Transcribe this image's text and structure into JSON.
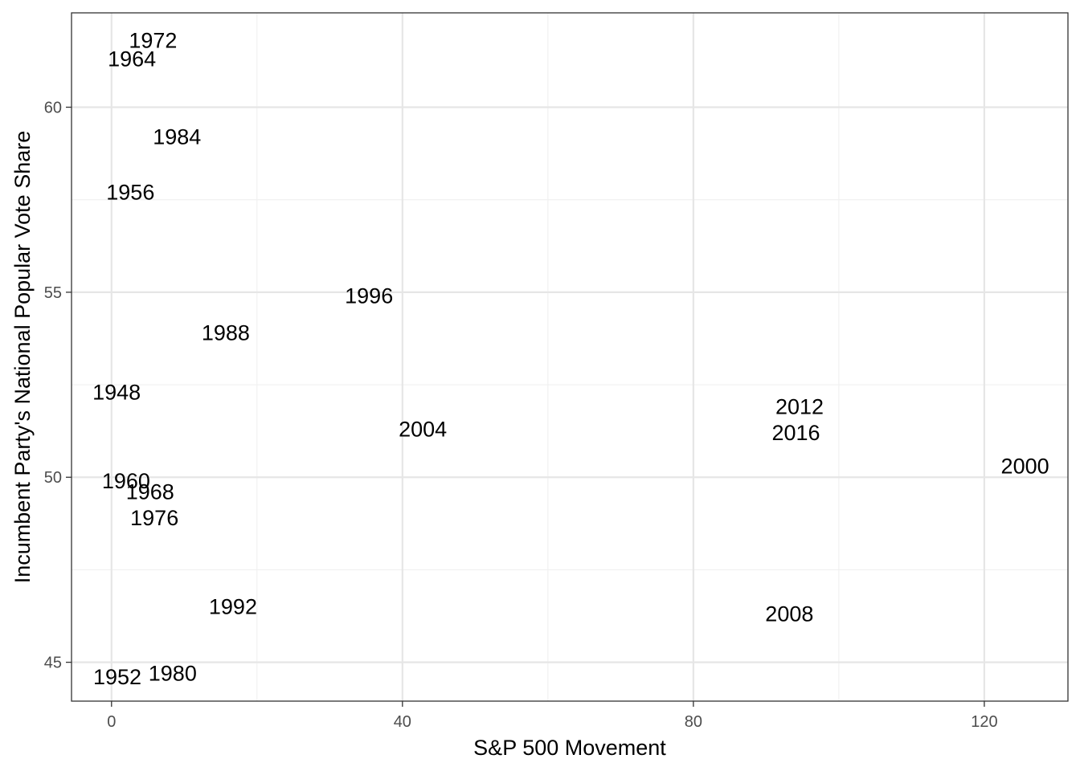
{
  "chart_data": {
    "type": "scatter",
    "title": "",
    "xlabel": "S&P 500 Movement",
    "ylabel": "Incumbent Party's National Popular Vote Share",
    "xlim": [
      -5.5,
      131.5
    ],
    "ylim": [
      43.95,
      62.55
    ],
    "x_ticks": [
      0,
      40,
      80,
      120
    ],
    "y_ticks": [
      45,
      50,
      55,
      60
    ],
    "x_minor": [
      20,
      60,
      100
    ],
    "y_minor": [
      47.5,
      52.5,
      57.5
    ],
    "grid": true,
    "marker": "text-label",
    "points": [
      {
        "label": "1948",
        "x": 0.7,
        "y": 52.3
      },
      {
        "label": "1952",
        "x": 0.8,
        "y": 44.6
      },
      {
        "label": "1956",
        "x": 2.6,
        "y": 57.7
      },
      {
        "label": "1960",
        "x": 2.0,
        "y": 49.9
      },
      {
        "label": "1964",
        "x": 2.8,
        "y": 61.3
      },
      {
        "label": "1968",
        "x": 5.3,
        "y": 49.6
      },
      {
        "label": "1972",
        "x": 5.7,
        "y": 61.8
      },
      {
        "label": "1976",
        "x": 5.9,
        "y": 48.9
      },
      {
        "label": "1980",
        "x": 8.4,
        "y": 44.7
      },
      {
        "label": "1984",
        "x": 9.0,
        "y": 59.2
      },
      {
        "label": "1988",
        "x": 15.7,
        "y": 53.9
      },
      {
        "label": "1992",
        "x": 16.7,
        "y": 46.5
      },
      {
        "label": "1996",
        "x": 35.4,
        "y": 54.9
      },
      {
        "label": "2000",
        "x": 125.6,
        "y": 50.3
      },
      {
        "label": "2004",
        "x": 42.8,
        "y": 51.3
      },
      {
        "label": "2008",
        "x": 93.2,
        "y": 46.3
      },
      {
        "label": "2012",
        "x": 94.6,
        "y": 51.9
      },
      {
        "label": "2016",
        "x": 94.1,
        "y": 51.2
      }
    ]
  }
}
